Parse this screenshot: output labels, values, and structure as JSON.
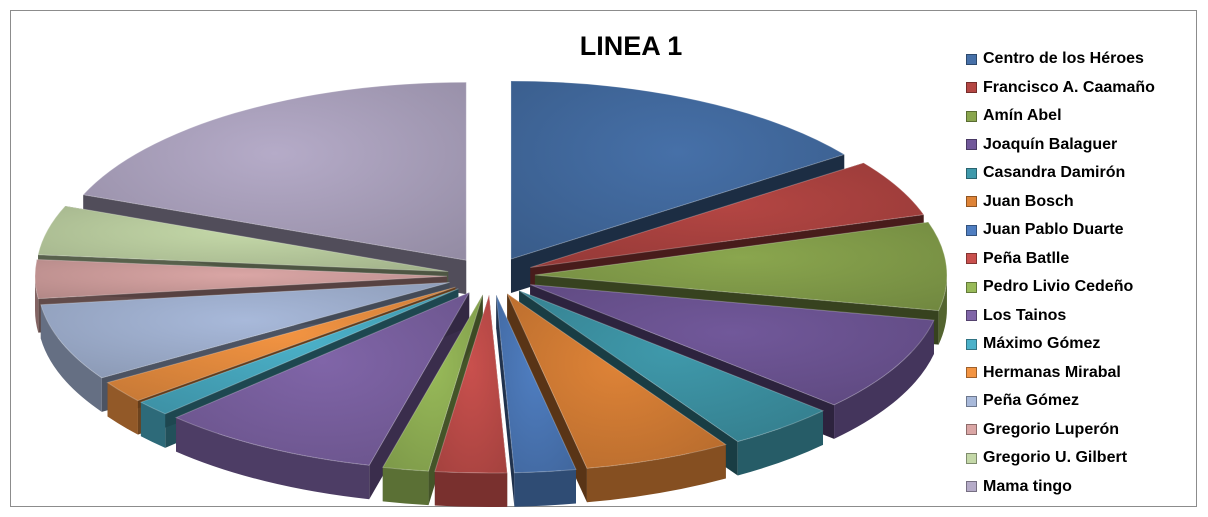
{
  "chart_data": {
    "type": "pie",
    "style": "3d-exploded",
    "title": "LINEA 1",
    "legend_position": "right",
    "slices": [
      {
        "label": "Centro de los Héroes",
        "value": 15.0,
        "color": "#4670a8"
      },
      {
        "label": "Francisco A. Caamaño",
        "value": 5.2,
        "color": "#b44643"
      },
      {
        "label": "Amín Abel",
        "value": 8.0,
        "color": "#8aa64e"
      },
      {
        "label": "Joaquín Balaguer",
        "value": 8.6,
        "color": "#71589a"
      },
      {
        "label": "Casandra Damirón",
        "value": 4.3,
        "color": "#3f99ab"
      },
      {
        "label": "Juan Bosch",
        "value": 5.8,
        "color": "#de8337"
      },
      {
        "label": "Juan Pablo Duarte",
        "value": 2.4,
        "color": "#4f7ec1"
      },
      {
        "label": "Peña Batlle",
        "value": 2.8,
        "color": "#c9504d"
      },
      {
        "label": "Pedro Livio Cedeño",
        "value": 1.8,
        "color": "#98ba59"
      },
      {
        "label": "Los Tainos",
        "value": 8.7,
        "color": "#8065a8"
      },
      {
        "label": "Máximo Gómez",
        "value": 1.4,
        "color": "#4bb1c9"
      },
      {
        "label": "Hermanas Mirabal",
        "value": 2.0,
        "color": "#f39442"
      },
      {
        "label": "Peña Gómez",
        "value": 7.0,
        "color": "#a8b9da"
      },
      {
        "label": "Gregorio Luperón",
        "value": 3.5,
        "color": "#daa6a5"
      },
      {
        "label": "Gregorio U. Gilbert",
        "value": 4.5,
        "color": "#c4d8a8"
      },
      {
        "label": "Mama tingo",
        "value": 19.0,
        "color": "#b5abc8"
      }
    ]
  }
}
